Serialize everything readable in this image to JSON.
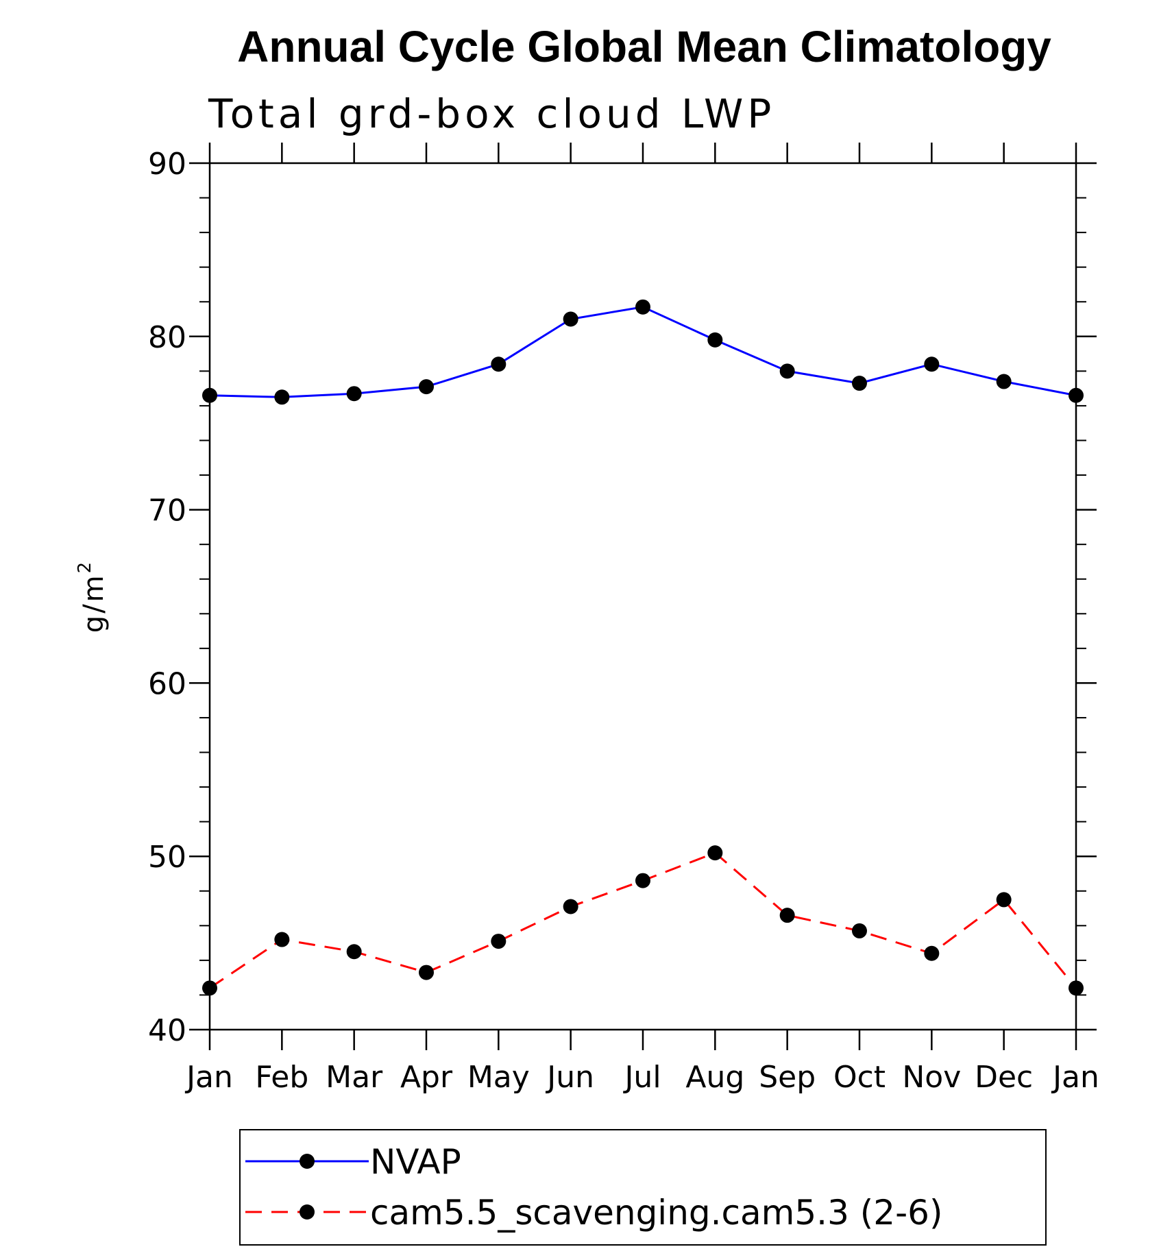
{
  "chart_data": {
    "type": "line",
    "title": "Annual Cycle Global Mean Climatology",
    "subtitle": "Total grd-box cloud LWP",
    "ylabel": "g/m",
    "ylabel_superscript": "2",
    "xlabel": "",
    "categories": [
      "Jan",
      "Feb",
      "Mar",
      "Apr",
      "May",
      "Jun",
      "Jul",
      "Aug",
      "Sep",
      "Oct",
      "Nov",
      "Dec",
      "Jan"
    ],
    "ylim": [
      40,
      90
    ],
    "yticks": [
      40,
      50,
      60,
      70,
      80,
      90
    ],
    "grid": false,
    "legend_position": "bottom",
    "series": [
      {
        "name": "NVAP",
        "color": "#0000ff",
        "dash": "solid",
        "marker": "filled-circle",
        "values": [
          76.6,
          76.5,
          76.7,
          77.1,
          78.4,
          81.0,
          81.7,
          79.8,
          78.0,
          77.3,
          78.4,
          77.4,
          76.6
        ]
      },
      {
        "name": "cam5.5_scavenging.cam5.3 (2-6)",
        "color": "#ff0000",
        "dash": "dashed",
        "marker": "filled-circle",
        "values": [
          42.4,
          45.2,
          44.5,
          43.3,
          45.1,
          47.1,
          48.6,
          50.2,
          46.6,
          45.7,
          44.4,
          47.5,
          42.4
        ]
      }
    ]
  }
}
